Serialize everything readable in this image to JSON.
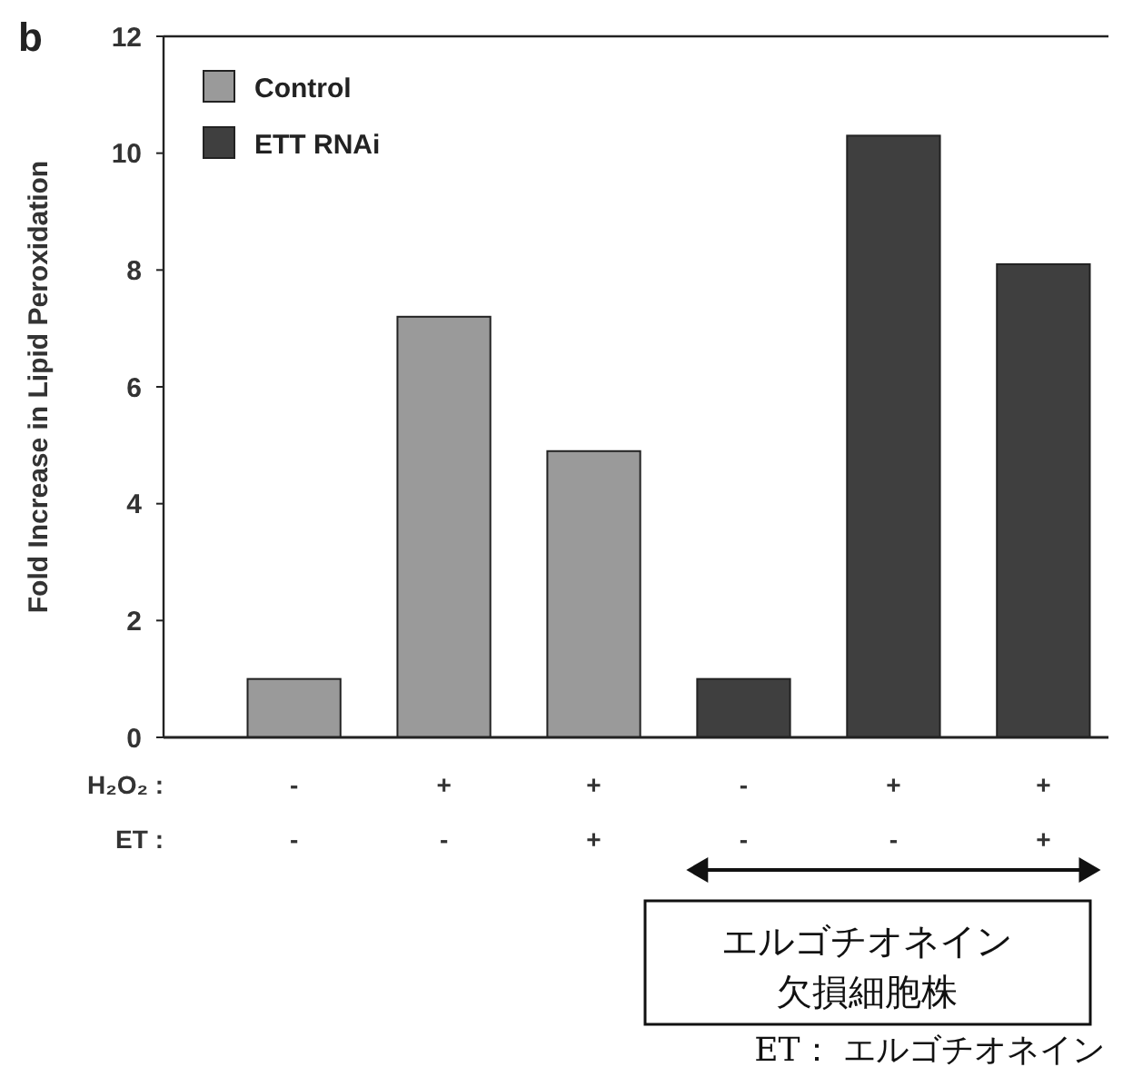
{
  "chart_data": {
    "type": "bar",
    "ylabel": "Fold Increase in Lipid Peroxidation",
    "categories": [
      "-\n-",
      "+\n-",
      "+\n+",
      "-\n-",
      "+\n-",
      "+\n+"
    ],
    "series": [
      {
        "name": "Control",
        "color": "#9a9a9a",
        "values": [
          1,
          7.2,
          4.9,
          null,
          null,
          null
        ]
      },
      {
        "name": "ETT RNAi",
        "color": "#3f3f3f",
        "values": [
          null,
          null,
          null,
          1,
          10.3,
          8.1
        ]
      }
    ],
    "ylim": [
      0,
      12
    ],
    "yticks": [
      0,
      2,
      4,
      6,
      8,
      10,
      12
    ],
    "grid": false,
    "legend": "top left",
    "annotations": [
      "b",
      "H₂O₂ :",
      "ET :",
      "エルゴチオネイン",
      "欠損細胞株",
      "ET： エルゴチオネイン"
    ]
  }
}
